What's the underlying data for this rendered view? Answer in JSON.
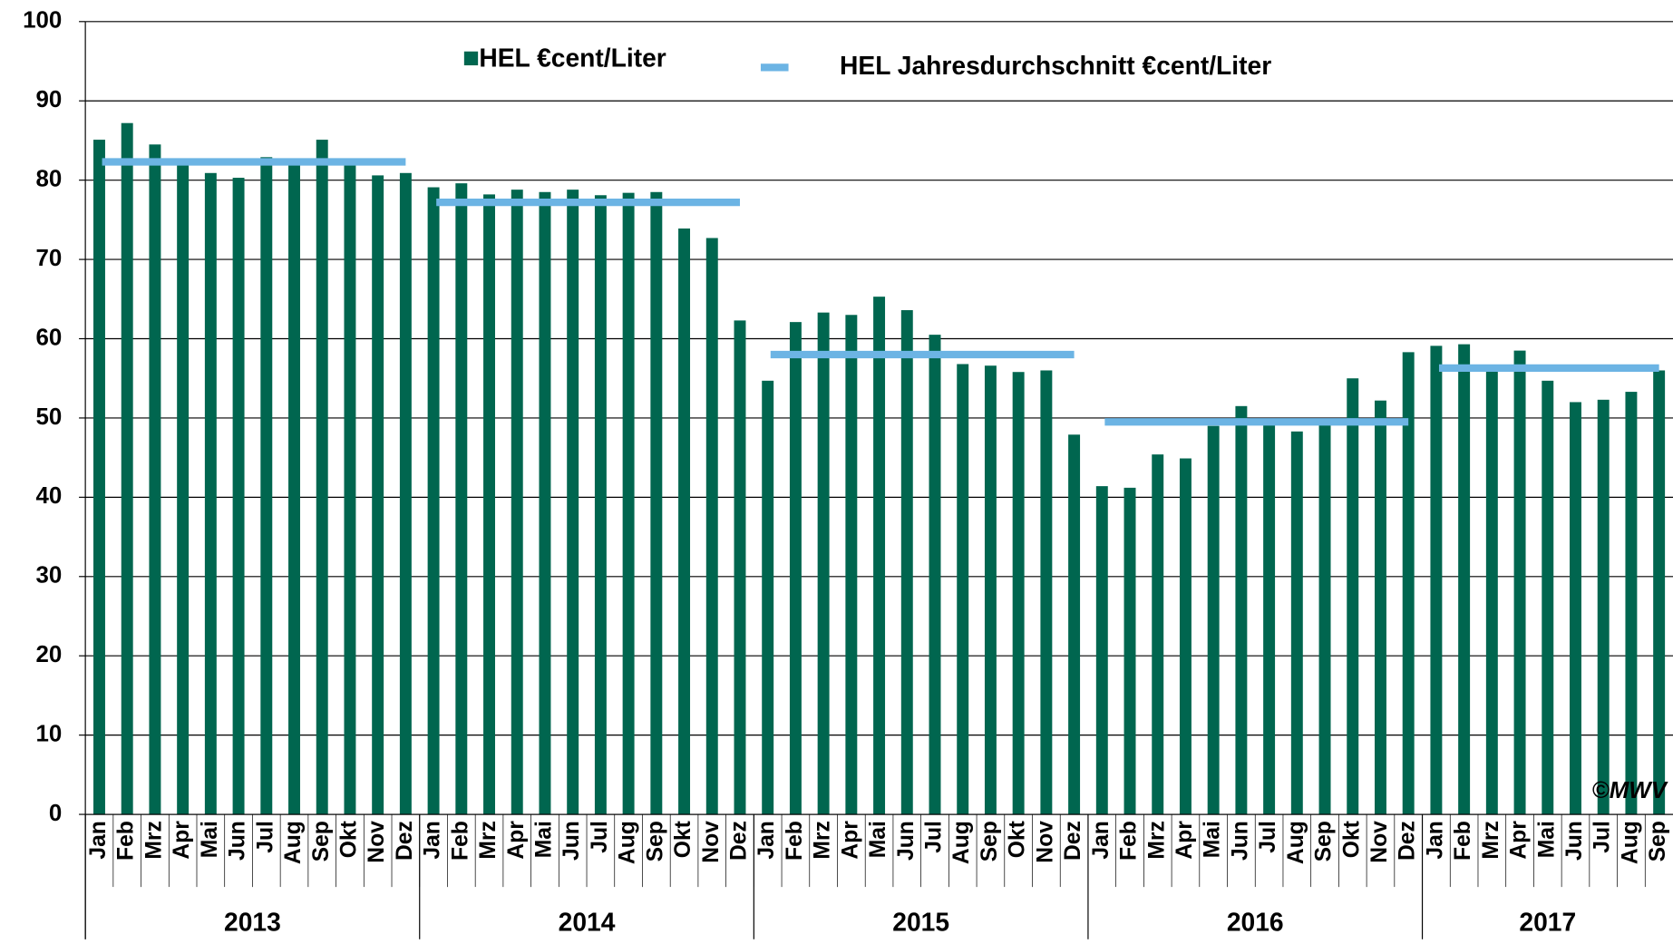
{
  "chart_data": {
    "type": "bar",
    "categories": [
      "Jan",
      "Feb",
      "Mrz",
      "Apr",
      "Mai",
      "Jun",
      "Jul",
      "Aug",
      "Sep",
      "Okt",
      "Nov",
      "Dez",
      "Jan",
      "Feb",
      "Mrz",
      "Apr",
      "Mai",
      "Jun",
      "Jul",
      "Aug",
      "Sep",
      "Okt",
      "Nov",
      "Dez",
      "Jan",
      "Feb",
      "Mrz",
      "Apr",
      "Mai",
      "Jun",
      "Jul",
      "Aug",
      "Sep",
      "Okt",
      "Nov",
      "Dez",
      "Jan",
      "Feb",
      "Mrz",
      "Apr",
      "Mai",
      "Jun",
      "Jul",
      "Aug",
      "Sep",
      "Okt",
      "Nov",
      "Dez",
      "Jan",
      "Feb",
      "Mrz",
      "Apr",
      "Mai",
      "Jun",
      "Jul",
      "Aug",
      "Sep"
    ],
    "series": [
      {
        "name": "HEL €cent/Liter",
        "color": "#00664f",
        "values": [
          85.1,
          87.2,
          84.5,
          82.0,
          80.9,
          80.3,
          82.9,
          82.4,
          85.1,
          82.0,
          80.6,
          80.9,
          79.1,
          79.6,
          78.2,
          78.8,
          78.5,
          78.8,
          78.1,
          78.4,
          78.5,
          73.9,
          72.7,
          62.3,
          54.7,
          62.1,
          63.3,
          63.0,
          65.3,
          63.6,
          60.5,
          56.8,
          56.6,
          55.8,
          56.0,
          47.9,
          41.4,
          41.2,
          45.4,
          44.9,
          49.0,
          51.5,
          49.3,
          48.3,
          49.4,
          55.0,
          52.2,
          58.3,
          59.1,
          59.3,
          56.5,
          58.5,
          54.7,
          52.0,
          52.3,
          53.3,
          56.0
        ]
      }
    ],
    "annual_series": {
      "name": "HEL Jahresdurchschnitt €cent/Liter",
      "color": "#6cb4e4",
      "categories": [
        "2013",
        "2014",
        "2015",
        "2016",
        "2017"
      ],
      "values": [
        82.3,
        77.2,
        58.0,
        49.5,
        56.3
      ]
    },
    "ylim": [
      0,
      100
    ],
    "yticks": [
      0,
      10,
      20,
      30,
      40,
      50,
      60,
      70,
      80,
      90,
      100
    ],
    "grid": true,
    "watermark": "©MWV"
  }
}
